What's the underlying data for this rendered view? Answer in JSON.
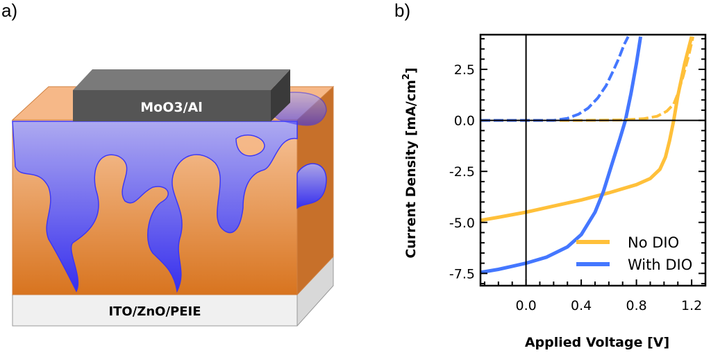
{
  "panel_a": {
    "label": "a)",
    "top_electrode": "MoO3/Al",
    "bottom_electrode": "ITO/ZnO/PEIE",
    "colors": {
      "active_layer": "#e8944a",
      "donor_phase": "#4040ff",
      "electrode": "#555555",
      "substrate": "#eeeeee"
    }
  },
  "panel_b": {
    "label": "b)"
  },
  "chart_data": {
    "type": "line",
    "xlabel": "Applied Voltage [V]",
    "ylabel": "Current Density [mA/cm",
    "ylabel_superscript": "2",
    "ylabel_end": "]",
    "xlim": [
      -0.33,
      1.3
    ],
    "ylim": [
      -8.1,
      4.2
    ],
    "xticks": [
      0.0,
      0.4,
      0.8,
      1.2
    ],
    "xtick_labels": [
      "0.0",
      "0.4",
      "0.8",
      "1.2"
    ],
    "yticks": [
      2.5,
      0.0,
      -2.5,
      -5.0,
      -7.5
    ],
    "ytick_labels": [
      "2.5",
      "0.0",
      "-2.5",
      "-5.0",
      "-7.5"
    ],
    "legend_position": "bottom-right",
    "series": [
      {
        "name": "No DIO",
        "condition": "light",
        "style": "solid",
        "color": "#ffc03a",
        "x": [
          -0.33,
          -0.2,
          0,
          0.2,
          0.4,
          0.6,
          0.8,
          0.9,
          0.97,
          1.01,
          1.04,
          1.07,
          1.1,
          1.15,
          1.2
        ],
        "y": [
          -4.9,
          -4.75,
          -4.5,
          -4.2,
          -3.9,
          -3.55,
          -3.15,
          -2.85,
          -2.4,
          -1.8,
          -1.0,
          0,
          1.2,
          2.8,
          4.1
        ]
      },
      {
        "name": "With DIO",
        "condition": "light",
        "style": "solid",
        "color": "#4477ff",
        "x": [
          -0.33,
          -0.2,
          0,
          0.15,
          0.3,
          0.4,
          0.5,
          0.56,
          0.62,
          0.68,
          0.72,
          0.76,
          0.8,
          0.83
        ],
        "y": [
          -7.45,
          -7.3,
          -7.0,
          -6.7,
          -6.2,
          -5.6,
          -4.5,
          -3.5,
          -2.2,
          -0.9,
          0,
          1.3,
          2.8,
          4.1
        ]
      },
      {
        "name": "No DIO (dark)",
        "condition": "dark",
        "style": "dashed",
        "color": "#ffc03a",
        "x": [
          -0.33,
          0.4,
          0.7,
          0.85,
          0.95,
          1.02,
          1.07,
          1.1,
          1.14,
          1.18,
          1.21
        ],
        "y": [
          0,
          0,
          0.02,
          0.08,
          0.2,
          0.45,
          0.8,
          1.3,
          2.2,
          3.2,
          4.1
        ]
      },
      {
        "name": "With DIO (dark)",
        "condition": "dark",
        "style": "dashed",
        "color": "#4477ff",
        "x": [
          -0.33,
          0.2,
          0.3,
          0.38,
          0.45,
          0.52,
          0.58,
          0.63,
          0.67,
          0.71,
          0.74
        ],
        "y": [
          0,
          0,
          0.1,
          0.3,
          0.6,
          1.1,
          1.7,
          2.4,
          3.0,
          3.7,
          4.1
        ]
      }
    ],
    "legend": [
      {
        "label": "No DIO",
        "color": "#ffc03a"
      },
      {
        "label": "With DIO",
        "color": "#4477ff"
      }
    ]
  }
}
